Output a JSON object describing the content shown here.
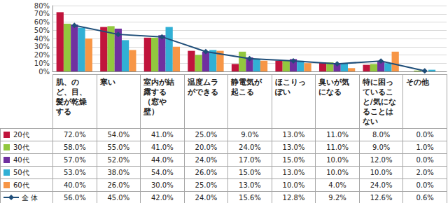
{
  "chart_data": {
    "type": "bar",
    "categories": [
      "肌、のど、目、髪が乾燥する",
      "寒い",
      "室内が結露する（窓や壁）",
      "温度ムラができる",
      "静電気が起こる",
      "ほこりっぽい",
      "臭いが気になる",
      "特に困っていること/気になることはない",
      "その他"
    ],
    "series": [
      {
        "name": "20代",
        "type": "bar",
        "color": "#c0143c",
        "values": [
          72,
          54,
          41,
          25,
          9,
          13,
          11,
          8,
          0
        ],
        "value_labels": [
          "72.0%",
          "54.0%",
          "41.0%",
          "25.0%",
          "9.0%",
          "13.0%",
          "11.0%",
          "8.0%",
          "0.0%"
        ]
      },
      {
        "name": "30代",
        "type": "bar",
        "color": "#92c83e",
        "values": [
          58,
          55,
          41,
          20,
          24,
          13,
          11,
          9,
          1
        ],
        "value_labels": [
          "58.0%",
          "55.0%",
          "41.0%",
          "20.0%",
          "24.0%",
          "13.0%",
          "11.0%",
          "9.0%",
          "1.0%"
        ]
      },
      {
        "name": "40代",
        "type": "bar",
        "color": "#7030a0",
        "values": [
          57,
          52,
          44,
          24,
          17,
          15,
          10,
          12,
          0
        ],
        "value_labels": [
          "57.0%",
          "52.0%",
          "44.0%",
          "24.0%",
          "17.0%",
          "15.0%",
          "10.0%",
          "12.0%",
          "0.0%"
        ]
      },
      {
        "name": "50代",
        "type": "bar",
        "color": "#31b0d5",
        "values": [
          53,
          38,
          54,
          26,
          15,
          13,
          10,
          10,
          2
        ],
        "value_labels": [
          "53.0%",
          "38.0%",
          "54.0%",
          "26.0%",
          "15.0%",
          "13.0%",
          "10.0%",
          "10.0%",
          "2.0%"
        ]
      },
      {
        "name": "60代",
        "type": "bar",
        "color": "#f79646",
        "values": [
          40,
          26,
          30,
          25,
          13,
          10,
          4,
          24,
          0
        ],
        "value_labels": [
          "40.0%",
          "26.0%",
          "30.0%",
          "25.0%",
          "13.0%",
          "10.0%",
          "4.0%",
          "24.0%",
          "0.0%"
        ]
      },
      {
        "name": "全 体",
        "type": "line",
        "color": "#1f4e79",
        "marker": "diamond",
        "line_style": "solid",
        "values": [
          56,
          45,
          42,
          24,
          15.6,
          12.8,
          9.2,
          12.6,
          0.6
        ],
        "value_labels": [
          "56.0%",
          "45.0%",
          "42.0%",
          "24.0%",
          "15.6%",
          "12.8%",
          "9.2%",
          "12.6%",
          "0.6%"
        ]
      }
    ],
    "ylim": [
      0,
      80
    ],
    "yticks": [
      {
        "value": 0,
        "label": "0%"
      },
      {
        "value": 10,
        "label": "10%"
      },
      {
        "value": 20,
        "label": "20%"
      },
      {
        "value": 30,
        "label": "30%"
      },
      {
        "value": 40,
        "label": "40%"
      },
      {
        "value": 50,
        "label": "50%"
      },
      {
        "value": 60,
        "label": "60%"
      },
      {
        "value": 70,
        "label": "70%"
      },
      {
        "value": 80,
        "label": "80%"
      }
    ],
    "grid": true,
    "data_labels": false
  }
}
